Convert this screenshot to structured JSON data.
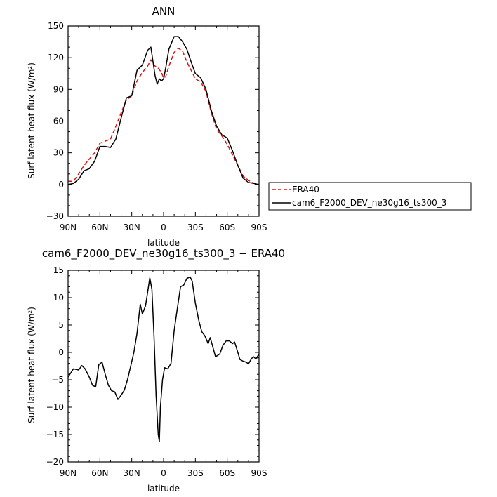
{
  "chart_data": [
    {
      "type": "line",
      "title": "ANN",
      "xlabel": "latitude",
      "ylabel": "Surf latent heat flux (W/m²)",
      "xlim": [
        90,
        -90
      ],
      "ylim": [
        -30,
        150
      ],
      "x_ticks": [
        "90N",
        "60N",
        "30N",
        "0",
        "30S",
        "60S",
        "90S"
      ],
      "y_ticks": [
        "150",
        "120",
        "90",
        "60",
        "30",
        "0",
        "−30"
      ],
      "legend_position": "right",
      "series": [
        {
          "name": "ERA40",
          "color": "#e01010",
          "dash": true,
          "points": [
            [
              90,
              3
            ],
            [
              85,
              3
            ],
            [
              80,
              10
            ],
            [
              75,
              18
            ],
            [
              70,
              24
            ],
            [
              65,
              30
            ],
            [
              60,
              39
            ],
            [
              55,
              41
            ],
            [
              50,
              43
            ],
            [
              45,
              55
            ],
            [
              40,
              68
            ],
            [
              35,
              80
            ],
            [
              30,
              84
            ],
            [
              25,
              98
            ],
            [
              20,
              106
            ],
            [
              15,
              112
            ],
            [
              12,
              118
            ],
            [
              8,
              112
            ],
            [
              5,
              110
            ],
            [
              2,
              106
            ],
            [
              0,
              101
            ],
            [
              -2,
              102
            ],
            [
              -5,
              112
            ],
            [
              -10,
              125
            ],
            [
              -14,
              129
            ],
            [
              -18,
              126
            ],
            [
              -22,
              116
            ],
            [
              -26,
              108
            ],
            [
              -30,
              100
            ],
            [
              -35,
              97
            ],
            [
              -40,
              88
            ],
            [
              -45,
              68
            ],
            [
              -50,
              52
            ],
            [
              -55,
              46
            ],
            [
              -60,
              38
            ],
            [
              -65,
              28
            ],
            [
              -70,
              18
            ],
            [
              -75,
              8
            ],
            [
              -80,
              4
            ],
            [
              -85,
              1
            ],
            [
              -90,
              0
            ]
          ]
        },
        {
          "name": "cam6_F2000_DEV_ne30g16_ts300_3",
          "color": "#000000",
          "dash": false,
          "points": [
            [
              90,
              0
            ],
            [
              85,
              1
            ],
            [
              80,
              5
            ],
            [
              75,
              13
            ],
            [
              70,
              15
            ],
            [
              65,
              22
            ],
            [
              60,
              36
            ],
            [
              55,
              36
            ],
            [
              50,
              35
            ],
            [
              45,
              43
            ],
            [
              40,
              63
            ],
            [
              35,
              82
            ],
            [
              30,
              84
            ],
            [
              25,
              108
            ],
            [
              20,
              113
            ],
            [
              15,
              127
            ],
            [
              12,
              130
            ],
            [
              8,
              103
            ],
            [
              6,
              95
            ],
            [
              4,
              100
            ],
            [
              2,
              98
            ],
            [
              0,
              100
            ],
            [
              -2,
              110
            ],
            [
              -5,
              128
            ],
            [
              -10,
              140
            ],
            [
              -14,
              140
            ],
            [
              -18,
              135
            ],
            [
              -22,
              128
            ],
            [
              -26,
              116
            ],
            [
              -30,
              105
            ],
            [
              -35,
              101
            ],
            [
              -40,
              90
            ],
            [
              -45,
              70
            ],
            [
              -50,
              55
            ],
            [
              -55,
              47
            ],
            [
              -60,
              44
            ],
            [
              -65,
              32
            ],
            [
              -70,
              18
            ],
            [
              -75,
              6
            ],
            [
              -80,
              2
            ],
            [
              -85,
              1
            ],
            [
              -90,
              0
            ]
          ]
        }
      ]
    },
    {
      "type": "line",
      "title": "cam6_F2000_DEV_ne30g16_ts300_3 − ERA40",
      "xlabel": "latitude",
      "ylabel": "Surf latent heat flux (W/m²)",
      "xlim": [
        90,
        -90
      ],
      "ylim": [
        -20,
        15
      ],
      "x_ticks": [
        "90N",
        "60N",
        "30N",
        "0",
        "30S",
        "60S",
        "90S"
      ],
      "y_ticks": [
        "15",
        "10",
        "5",
        "0",
        "−5",
        "−10",
        "−15",
        "−20"
      ],
      "series": [
        {
          "color": "#000000",
          "points": [
            [
              90,
              -4.5
            ],
            [
              85,
              -3
            ],
            [
              80,
              -3.2
            ],
            [
              77,
              -2.4
            ],
            [
              74,
              -3
            ],
            [
              70,
              -4.5
            ],
            [
              67,
              -6
            ],
            [
              64,
              -6.3
            ],
            [
              61,
              -2.2
            ],
            [
              58,
              -1.8
            ],
            [
              55,
              -4
            ],
            [
              52,
              -6
            ],
            [
              49,
              -7
            ],
            [
              46,
              -7.2
            ],
            [
              43,
              -8.6
            ],
            [
              40,
              -7.8
            ],
            [
              37,
              -6.9
            ],
            [
              34,
              -5
            ],
            [
              31,
              -2.5
            ],
            [
              28,
              0
            ],
            [
              25,
              3.5
            ],
            [
              22,
              8.8
            ],
            [
              20,
              7
            ],
            [
              17,
              8.5
            ],
            [
              15,
              11
            ],
            [
              13,
              13.6
            ],
            [
              11,
              11.5
            ],
            [
              9,
              3
            ],
            [
              7,
              -8
            ],
            [
              5,
              -15
            ],
            [
              4,
              -16.3
            ],
            [
              3,
              -10
            ],
            [
              1,
              -5
            ],
            [
              -1,
              -2.8
            ],
            [
              -4,
              -3
            ],
            [
              -7,
              -2
            ],
            [
              -10,
              4
            ],
            [
              -13,
              8
            ],
            [
              -16,
              12
            ],
            [
              -19,
              12.3
            ],
            [
              -22,
              13.5
            ],
            [
              -25,
              13.8
            ],
            [
              -27,
              13
            ],
            [
              -30,
              9
            ],
            [
              -33,
              6
            ],
            [
              -36,
              3.8
            ],
            [
              -39,
              3
            ],
            [
              -42,
              1.6
            ],
            [
              -44,
              2.7
            ],
            [
              -47,
              0.6
            ],
            [
              -49,
              -0.8
            ],
            [
              -53,
              -0.3
            ],
            [
              -56,
              1.3
            ],
            [
              -59,
              2.1
            ],
            [
              -62,
              2.1
            ],
            [
              -65,
              1.6
            ],
            [
              -67,
              1.9
            ],
            [
              -70,
              0
            ],
            [
              -72,
              -1.3
            ],
            [
              -75,
              -1.6
            ],
            [
              -78,
              -1.8
            ],
            [
              -80,
              -2.1
            ],
            [
              -83,
              -1.1
            ],
            [
              -85,
              -0.8
            ],
            [
              -87,
              -1.2
            ],
            [
              -90,
              -0.3
            ]
          ]
        }
      ]
    }
  ]
}
